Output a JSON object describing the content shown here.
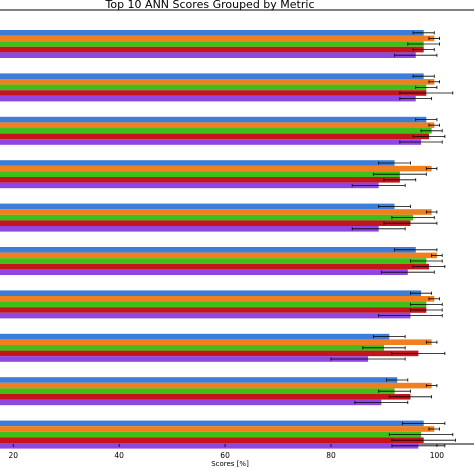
{
  "chart_data": {
    "type": "bar",
    "orientation": "horizontal",
    "title": "Top 10 ANN Scores Grouped by Metric",
    "xlabel": "Scores [%]",
    "ylabel": "",
    "xlim": [
      17.5,
      107
    ],
    "xticks": [
      20,
      40,
      60,
      80,
      100
    ],
    "grid": false,
    "legend": "none",
    "colors": [
      "#3b7dd8",
      "#f07f1f",
      "#3fbf1a",
      "#c4151c",
      "#8e47e0"
    ],
    "groups": [
      {
        "values": [
          97.5,
          99.5,
          97.5,
          97.5,
          96
        ],
        "errors": [
          2,
          1,
          3,
          2,
          4
        ]
      },
      {
        "values": [
          97.5,
          99.5,
          98,
          98,
          96
        ],
        "errors": [
          2,
          1,
          2,
          5,
          3
        ]
      },
      {
        "values": [
          98,
          99.5,
          99,
          98.5,
          97
        ],
        "errors": [
          2,
          1,
          2,
          3,
          4
        ]
      },
      {
        "values": [
          92,
          99,
          93,
          93,
          89
        ],
        "errors": [
          3,
          1,
          5,
          3,
          5
        ]
      },
      {
        "values": [
          92,
          99,
          95.5,
          95,
          89
        ],
        "errors": [
          3,
          1,
          4,
          5,
          5
        ]
      },
      {
        "values": [
          96,
          100,
          98,
          98.5,
          94.5
        ],
        "errors": [
          4,
          1,
          3,
          3,
          5
        ]
      },
      {
        "values": [
          97,
          99.5,
          98,
          98,
          95
        ],
        "errors": [
          2,
          1,
          3,
          3,
          6
        ]
      },
      {
        "values": [
          91,
          99,
          90,
          96.5,
          87
        ],
        "errors": [
          3,
          1,
          4,
          5,
          7
        ]
      },
      {
        "values": [
          92.5,
          99,
          92,
          95,
          89.5
        ],
        "errors": [
          2,
          1,
          3,
          4,
          5
        ]
      },
      {
        "values": [
          97.5,
          99.5,
          97,
          97.5,
          96.5
        ],
        "errors": [
          4,
          1,
          6,
          6,
          5
        ]
      }
    ]
  }
}
